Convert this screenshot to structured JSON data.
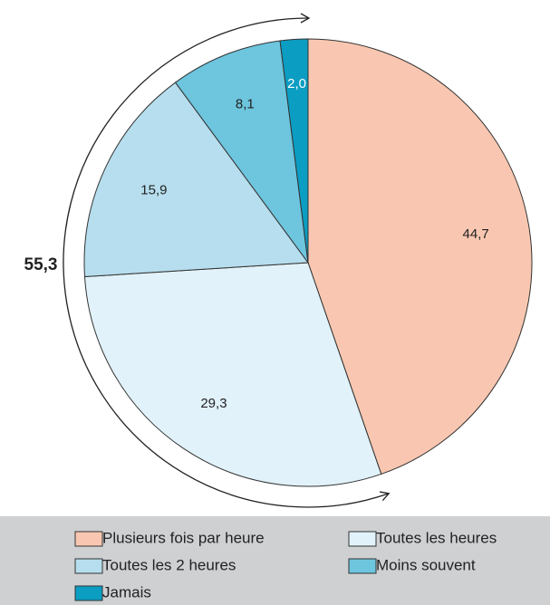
{
  "chart_data": {
    "type": "pie",
    "categories": [
      "Plusieurs fois par heure",
      "Toutes les heures",
      "Toutes les 2 heures",
      "Moins souvent",
      "Jamais"
    ],
    "values": [
      44.7,
      29.3,
      15.9,
      8.1,
      2.0
    ],
    "value_labels": [
      "44,7",
      "29,3",
      "15,9",
      "8,1",
      "2,0"
    ],
    "colors": [
      "#f9c7b1",
      "#e1f2fa",
      "#b6deee",
      "#6dc5de",
      "#0b9dc2"
    ],
    "annotation": "55,3",
    "legend": "bottom"
  }
}
